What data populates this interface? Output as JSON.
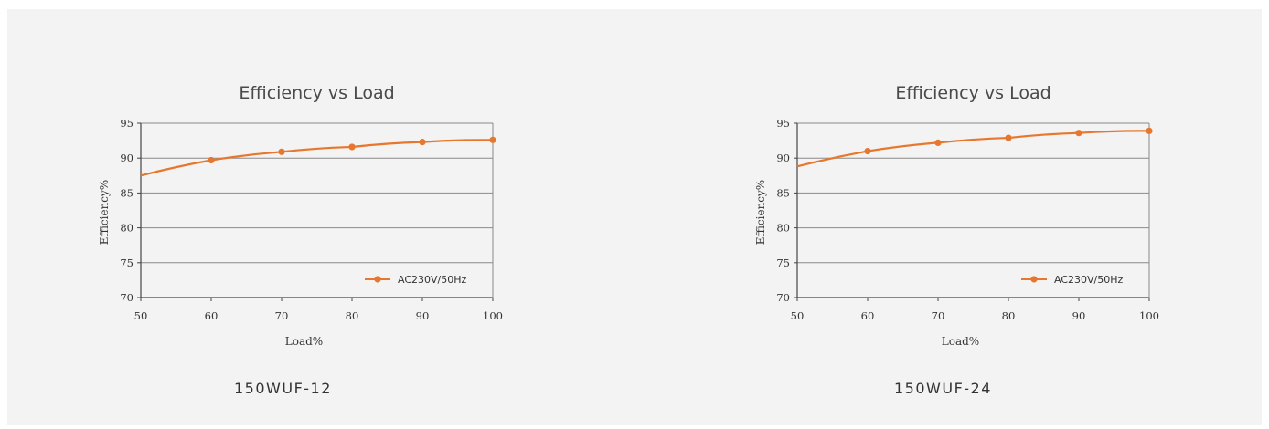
{
  "chart_data": [
    {
      "type": "line",
      "title": "Efficiency vs Load",
      "xlabel": "Load%",
      "ylabel": "Efficiency%",
      "xlim": [
        50,
        100
      ],
      "ylim": [
        70,
        95
      ],
      "x_ticks": [
        "50",
        "60",
        "70",
        "80",
        "90",
        "100"
      ],
      "y_ticks": [
        "95",
        "90",
        "85",
        "80",
        "75",
        "70"
      ],
      "grid": "horizontal",
      "legend": "bottom-right",
      "series": [
        {
          "name": "AC230V/50Hz",
          "color": "#e8772e",
          "x": [
            50,
            60,
            70,
            80,
            90,
            100
          ],
          "y": [
            87.5,
            89.7,
            90.9,
            91.6,
            92.3,
            92.6
          ]
        }
      ],
      "caption": "150WUF-12"
    },
    {
      "type": "line",
      "title": "Efficiency vs Load",
      "xlabel": "Load%",
      "ylabel": "Efficiency%",
      "xlim": [
        50,
        100
      ],
      "ylim": [
        70,
        95
      ],
      "x_ticks": [
        "50",
        "60",
        "70",
        "80",
        "90",
        "100"
      ],
      "y_ticks": [
        "95",
        "90",
        "85",
        "80",
        "75",
        "70"
      ],
      "grid": "horizontal",
      "legend": "bottom-right",
      "series": [
        {
          "name": "AC230V/50Hz",
          "color": "#e8772e",
          "x": [
            50,
            60,
            70,
            80,
            90,
            100
          ],
          "y": [
            88.8,
            91.0,
            92.2,
            92.9,
            93.6,
            93.9
          ]
        }
      ],
      "caption": "150WUF-24"
    }
  ]
}
